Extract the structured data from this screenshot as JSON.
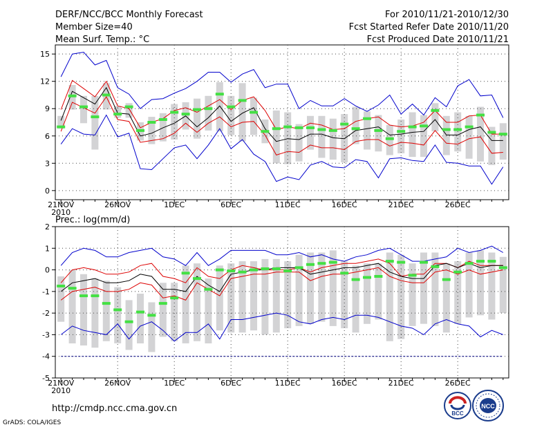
{
  "header": {
    "title": "DERF/NCC/BCC Monthly Forecast",
    "member": "Member Size=40",
    "variable": "Mean Surf. Temp.: °C",
    "period": "For 2010/11/21-2010/12/30",
    "started": "Fcst Started Refer Date 2010/11/20",
    "produced": "Fcst Produced Date 2010/11/21"
  },
  "footer": {
    "url": "http://cmdp.ncc.cma.gov.cn",
    "grads": "GrADS: COLA/IGES",
    "logo1": "BCC",
    "logo2": "NCC"
  },
  "colors": {
    "box": "#d3d3d5",
    "median": "#44e044",
    "mean": "#000000",
    "sd": "#dd0000",
    "range": "#0000cc",
    "dash": "#000080"
  },
  "chart_data": [
    {
      "type": "line",
      "title": "Mean Surf. Temp.: °C",
      "ylim": [
        -1,
        16
      ],
      "yticks": [
        "0",
        "3",
        "6",
        "9",
        "12",
        "15"
      ],
      "yticks_values": [
        0,
        3,
        6,
        9,
        12,
        15
      ],
      "xlabels": [
        "21NOV",
        "26NOV",
        "1DEC",
        "6DEC",
        "11DEC",
        "16DEC",
        "21DEC",
        "26DEC"
      ],
      "xlabel_year": "2010",
      "xlabel_days": [
        1,
        6,
        11,
        16,
        21,
        26,
        31,
        36
      ],
      "day_range": [
        0.5,
        40.5
      ],
      "series": [
        {
          "name": "max",
          "values": [
            12.5,
            15,
            15.2,
            13.8,
            14.3,
            11.3,
            10.6,
            9,
            10,
            10.1,
            10.7,
            11.2,
            12,
            13,
            13,
            11.9,
            12.8,
            13.3,
            11.3,
            11.7,
            11.7,
            9,
            9.9,
            9.3,
            9.3,
            10.1,
            9.3,
            8.7,
            9.4,
            10.5,
            8.4,
            9.5,
            8.3,
            10.2,
            9.2,
            11.5,
            12.2,
            10.4,
            10.5,
            8
          ]
        },
        {
          "name": "mean_plus_sd",
          "values": [
            8.9,
            12.1,
            11.2,
            10.3,
            12,
            9.3,
            9,
            6.9,
            7.5,
            7.9,
            8.8,
            9.1,
            8.6,
            9.3,
            10,
            8.9,
            9.9,
            10.3,
            8.8,
            6.7,
            7,
            6.8,
            7.4,
            7.2,
            6.7,
            6.8,
            7.6,
            7.9,
            8.1,
            7.2,
            7,
            7.1,
            7.5,
            8.8,
            7.5,
            7.5,
            8.2,
            8.3,
            6.2,
            6.2
          ]
        },
        {
          "name": "mean",
          "values": [
            7.7,
            10.9,
            10.2,
            9.5,
            11.3,
            8.5,
            8.4,
            6,
            6.3,
            6.9,
            7.4,
            8.2,
            7,
            8,
            9.3,
            7.6,
            8.5,
            9.1,
            6.8,
            5.4,
            5.7,
            5.6,
            6.2,
            6.2,
            5.8,
            5.7,
            6.6,
            6.8,
            7,
            6.1,
            6.2,
            6.4,
            6.5,
            7.8,
            6.1,
            6.1,
            6.7,
            7,
            5.5,
            5.5
          ]
        },
        {
          "name": "mean_minus_sd",
          "values": [
            6.5,
            9.7,
            9.1,
            8.5,
            10.3,
            7.8,
            7.6,
            5.3,
            5.5,
            5.7,
            6.3,
            7.4,
            6.4,
            7.4,
            8.1,
            7,
            7.5,
            7.6,
            6.1,
            3.9,
            4.3,
            4.2,
            5,
            4.7,
            4.7,
            4.5,
            5.4,
            5.6,
            5.6,
            4.9,
            5.3,
            5.2,
            5,
            6.6,
            5.2,
            5.1,
            5.7,
            5.9,
            4.1,
            4.2
          ]
        },
        {
          "name": "min",
          "values": [
            5.1,
            6.8,
            6.2,
            6.1,
            8.3,
            5.9,
            6.3,
            2.4,
            2.3,
            3.5,
            4.7,
            5,
            3.5,
            5,
            6.8,
            4.6,
            5.6,
            4,
            3.2,
            1,
            1.5,
            1.2,
            2.8,
            3.2,
            2.6,
            2.5,
            3.4,
            3.2,
            1.4,
            3.5,
            3.6,
            3.3,
            3.2,
            5,
            3.1,
            3,
            2.7,
            2.7,
            0.7,
            2.6
          ]
        },
        {
          "name": "median",
          "values": [
            7,
            10.4,
            9.2,
            8.1,
            10.5,
            8.4,
            9.2,
            6.6,
            7.5,
            7.8,
            8.6,
            8.4,
            8.9,
            9,
            10.6,
            9.2,
            9.9,
            8.6,
            6.5,
            6.8,
            7,
            6.9,
            6.9,
            6.7,
            6.6,
            7.3,
            6.8,
            7.9,
            6.6,
            5.7,
            6.5,
            7,
            7.1,
            8.8,
            6.7,
            6.7,
            7,
            8.3,
            6.4,
            6.2
          ]
        },
        {
          "name": "box_top",
          "values": [
            8.2,
            11.6,
            10.4,
            10.4,
            11.8,
            9.3,
            9.6,
            7.5,
            8.1,
            8.5,
            9.5,
            9.7,
            10.1,
            10.4,
            11.9,
            10.4,
            11.8,
            10.2,
            7.8,
            8.8,
            8.6,
            7.3,
            8.2,
            8.2,
            7.9,
            8.4,
            9.2,
            8.7,
            8.3,
            7.2,
            7.8,
            8.6,
            8.3,
            9.6,
            8.2,
            8.6,
            8.2,
            9.2,
            7,
            7.4
          ]
        },
        {
          "name": "box_bottom",
          "values": [
            6.8,
            8.9,
            7.4,
            4.5,
            8.9,
            8,
            8,
            5.5,
            5.1,
            5.4,
            5.6,
            6.7,
            5.7,
            6.6,
            6.5,
            6.1,
            5.4,
            6.1,
            5.2,
            3,
            2.9,
            3.2,
            4.5,
            3.6,
            3.4,
            3.1,
            5.1,
            4.5,
            4.3,
            3.9,
            4.1,
            3.7,
            3.7,
            6.5,
            3.9,
            4.3,
            3.5,
            3.2,
            2.8,
            3.4
          ]
        }
      ]
    },
    {
      "type": "line",
      "title": "Prec.: log(mm/d)",
      "ylim": [
        -5,
        2
      ],
      "yticks": [
        "-5",
        "-4",
        "-3",
        "-2",
        "-1",
        "0",
        "1",
        "2"
      ],
      "yticks_values": [
        -5,
        -4,
        -3,
        -2,
        -1,
        0,
        1,
        2
      ],
      "xlabels": [
        "21NOV",
        "26NOV",
        "1DEC",
        "6DEC",
        "11DEC",
        "16DEC",
        "21DEC",
        "26DEC"
      ],
      "xlabel_year": "2010",
      "xlabel_days": [
        1,
        6,
        11,
        16,
        21,
        26,
        31,
        36
      ],
      "day_range": [
        0.5,
        40.5
      ],
      "floor_line": -4,
      "series": [
        {
          "name": "max",
          "values": [
            0.2,
            0.8,
            1,
            0.9,
            0.6,
            0.6,
            0.8,
            0.9,
            1,
            0.6,
            0.5,
            0.2,
            0.8,
            0.2,
            0.5,
            0.9,
            0.9,
            0.9,
            0.9,
            0.7,
            0.7,
            0.8,
            0.6,
            0.7,
            0.5,
            0.4,
            0.6,
            0.7,
            0.9,
            1,
            0.7,
            0.4,
            0.4,
            0.5,
            0.6,
            1,
            0.8,
            0.9,
            1.1,
            0.8
          ]
        },
        {
          "name": "mean_plus_sd",
          "values": [
            -0.6,
            0,
            0.1,
            0,
            -0.2,
            -0.2,
            -0.1,
            0.2,
            0.3,
            -0.3,
            -0.4,
            -0.6,
            0.1,
            -0.3,
            -0.4,
            0,
            0.2,
            0.1,
            0,
            0,
            0,
            0.1,
            -0.1,
            0.1,
            0.2,
            0.3,
            0.3,
            0.4,
            0.5,
            0.3,
            -0.3,
            -0.2,
            -0.2,
            0.3,
            0.3,
            0.1,
            0.4,
            0.2,
            0.2,
            0.2
          ]
        },
        {
          "name": "mean",
          "values": [
            -1,
            -0.6,
            -0.5,
            -0.4,
            -0.6,
            -0.6,
            -0.5,
            -0.2,
            -0.3,
            -0.9,
            -0.9,
            -1,
            -0.3,
            -0.7,
            -1,
            -0.2,
            -0.1,
            0,
            0,
            0.1,
            0.1,
            0.1,
            -0.2,
            -0.1,
            0,
            0.1,
            0.1,
            0.2,
            0.3,
            -0.1,
            -0.3,
            -0.4,
            -0.4,
            0.2,
            0.3,
            0.1,
            0.3,
            0.1,
            0.2,
            0.2
          ]
        },
        {
          "name": "mean_minus_sd",
          "values": [
            -1.4,
            -1,
            -0.9,
            -0.8,
            -1,
            -1,
            -0.9,
            -0.6,
            -0.7,
            -1.3,
            -1.2,
            -1.4,
            -0.6,
            -0.9,
            -1.2,
            -0.4,
            -0.3,
            -0.2,
            -0.2,
            -0.1,
            -0.1,
            -0.1,
            -0.5,
            -0.3,
            -0.2,
            -0.2,
            -0.1,
            0,
            0.1,
            -0.3,
            -0.5,
            -0.6,
            -0.6,
            -0.1,
            0,
            -0.2,
            0,
            -0.2,
            -0.1,
            0
          ]
        },
        {
          "name": "min",
          "values": [
            -3,
            -2.6,
            -2.8,
            -2.9,
            -3,
            -2.5,
            -3.2,
            -2.6,
            -2.4,
            -2.8,
            -3.3,
            -2.9,
            -2.9,
            -2.5,
            -3.2,
            -2.3,
            -2.3,
            -2.2,
            -2.1,
            -2,
            -2.1,
            -2.4,
            -2.5,
            -2.3,
            -2.2,
            -2.3,
            -2.1,
            -2.1,
            -2.2,
            -2.4,
            -2.6,
            -2.7,
            -3,
            -2.5,
            -2.3,
            -2.5,
            -2.6,
            -3.1,
            -2.8,
            -3
          ]
        },
        {
          "name": "median",
          "values": [
            -0.75,
            -0.85,
            -1.2,
            -1.2,
            -1.55,
            -1.85,
            -2.4,
            -1.95,
            -2.1,
            -1.55,
            -1.3,
            -0.15,
            -0.4,
            -0.9,
            0,
            -0.05,
            -0.1,
            0,
            0.05,
            0.05,
            -0.05,
            0.1,
            0.25,
            0.3,
            0.35,
            -0.15,
            -0.45,
            -0.35,
            -0.3,
            0.4,
            0.35,
            -0.25,
            0.35,
            0.15,
            -0.45,
            -0.1,
            0.3,
            0.4,
            0.4,
            0.1
          ]
        },
        {
          "name": "box_top",
          "values": [
            -0.3,
            0,
            -0.2,
            -0.4,
            -0.5,
            -0.8,
            -1.4,
            -1.1,
            -1.5,
            -0.6,
            -0.6,
            0.2,
            0.3,
            -0.4,
            0.2,
            0.3,
            0.4,
            0.4,
            0.5,
            0.5,
            0.4,
            0.7,
            0.8,
            0.8,
            0.9,
            0.4,
            0.2,
            0.3,
            0.3,
            0.8,
            0.7,
            0.3,
            0.8,
            0.8,
            0.3,
            0.4,
            0.8,
            0.9,
            0.8,
            0.6
          ]
        },
        {
          "name": "box_bottom",
          "values": [
            -2.4,
            -3.4,
            -3.5,
            -3.6,
            -3.3,
            -3.4,
            -3.7,
            -3.4,
            -3.8,
            -3.1,
            -3.3,
            -3.4,
            -3.3,
            -3.4,
            -2.8,
            -2.9,
            -2.9,
            -2.8,
            -3,
            -2.9,
            -2.7,
            -2.6,
            -2.5,
            -2.4,
            -2.6,
            -2.7,
            -2.9,
            -2.5,
            -2.3,
            -3.3,
            -3.2,
            -2.6,
            -2.5,
            -2.6,
            -2.9,
            -2.5,
            -2.2,
            -2.1,
            -2.3,
            -2
          ]
        }
      ]
    }
  ]
}
